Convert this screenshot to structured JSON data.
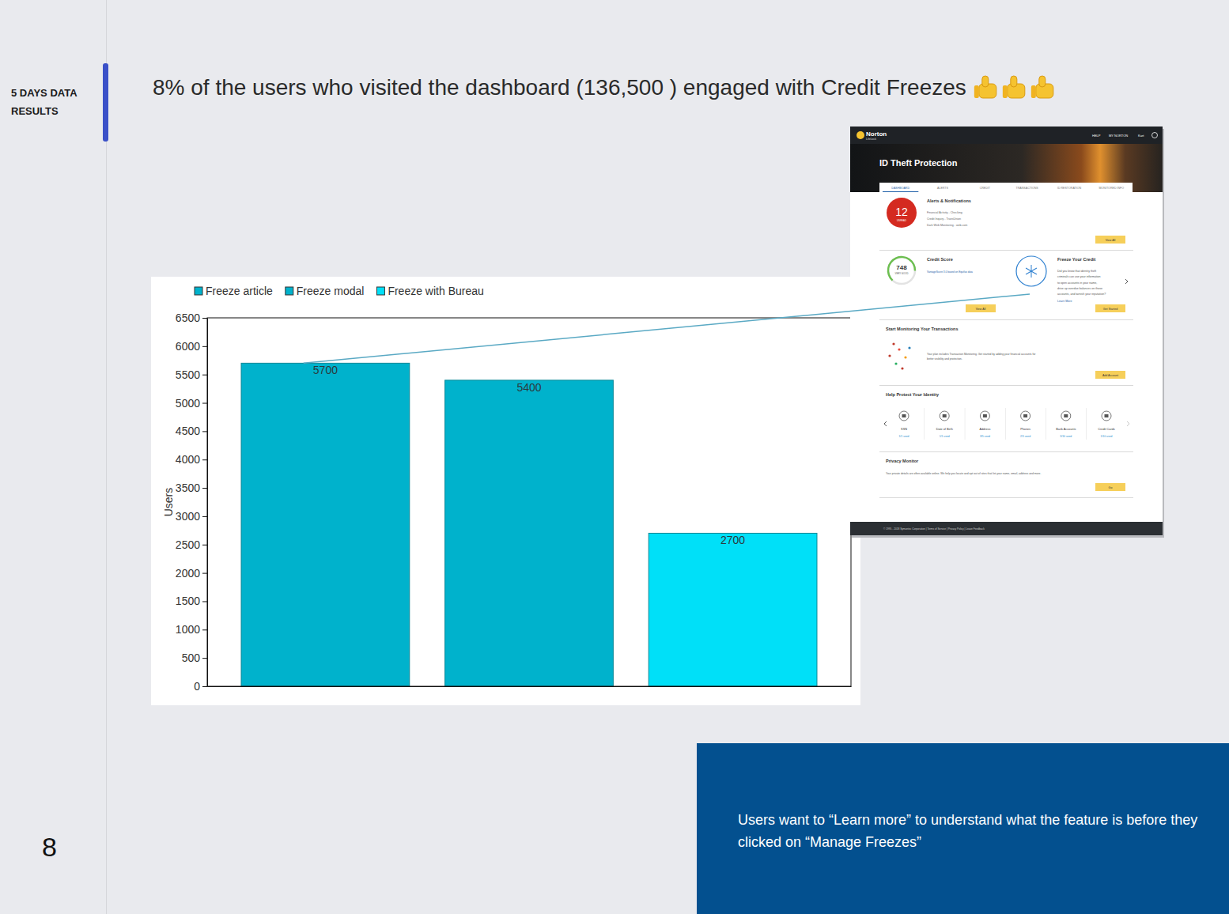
{
  "slide": {
    "side_label": [
      "5 DAYS DATA",
      "RESULTS"
    ],
    "headline": "8% of the users who visited the dashboard (136,500 ) engaged with Credit Freezes",
    "page_number": "8",
    "callout": [
      "Users want to “Learn more” to understand what the feature is before they",
      "clicked on “Manage Freezes”"
    ]
  },
  "chart_data": {
    "type": "bar",
    "categories": [
      null
    ],
    "series": [
      {
        "name": "Freeze article",
        "color": "#00b2cc",
        "values": [
          5700
        ]
      },
      {
        "name": "Freeze modal",
        "color": "#00b2cc",
        "values": [
          5400
        ]
      },
      {
        "name": "Freeze with Bureau",
        "color": "#00e0f8",
        "values": [
          2700
        ]
      }
    ],
    "y_label": "Users",
    "ylim": [
      0,
      6500
    ],
    "yticks": [
      0,
      500,
      1000,
      1500,
      2000,
      2500,
      3000,
      3500,
      4000,
      4500,
      5000,
      5500,
      6000,
      6500
    ],
    "data_labels": true,
    "legend": "top-left",
    "grid": false
  },
  "screenshot": {
    "brand": "Norton",
    "brand_sub": "LifeLock",
    "nav": [
      "HELP",
      "MY NORTON",
      "Kurt"
    ],
    "hero_title": "ID Theft Protection",
    "tabs": [
      "DASHBOARD",
      "ALERTS",
      "CREDIT",
      "TRANSACTIONS",
      "ID RESTORATION",
      "MONITORED INFO"
    ],
    "alerts_title": "Alerts & Notifications",
    "alerts_count": "12",
    "alerts_unread": "UNREAD",
    "alert_items": [
      "Financial Activity - Checking",
      "Credit Inquiry - TransUnion",
      "Dark Web Monitoring - web.com"
    ],
    "view_all": "View All",
    "credit_title": "Credit Score",
    "credit_score": "748",
    "credit_rating": "VERY GOOD",
    "credit_source": "VantageScore 3.0 based on Equifax data",
    "freeze_title": "Freeze Your Credit",
    "freeze_text": [
      "Did you know that identity theft",
      "criminals can use your information",
      "to open accounts in your name,",
      "drive up overdue balances on those",
      "accounts, and tarnish your reputation?"
    ],
    "learn_more": "Learn More",
    "get_started": "Get Started",
    "transactions_title": "Start Monitoring Your Transactions",
    "transactions_text": [
      "Your plan includes Transaction Monitoring. Get started by adding your financial accounts for",
      "better visibility and protection."
    ],
    "add_account": "Add Account",
    "identity_title": "Help Protect Your Identity",
    "identity_items": [
      {
        "label": "SSN",
        "usage": "1/1 used"
      },
      {
        "label": "Date of Birth",
        "usage": "1/1 used"
      },
      {
        "label": "Address",
        "usage": "3/5 used"
      },
      {
        "label": "Phones",
        "usage": "2/5 used"
      },
      {
        "label": "Bank Accounts",
        "usage": "3/10 used"
      },
      {
        "label": "Credit Cards",
        "usage": "1/10 used"
      }
    ],
    "privacy_title": "Privacy Monitor",
    "privacy_text": "Your private details are often available online. We help you locate and opt out of sites that list your name, email, address and more.",
    "go": "Go",
    "footer": "© 1995 - 2018 Symantec Corporation | Terms of Service | Privacy Policy | Leave Feedback"
  }
}
